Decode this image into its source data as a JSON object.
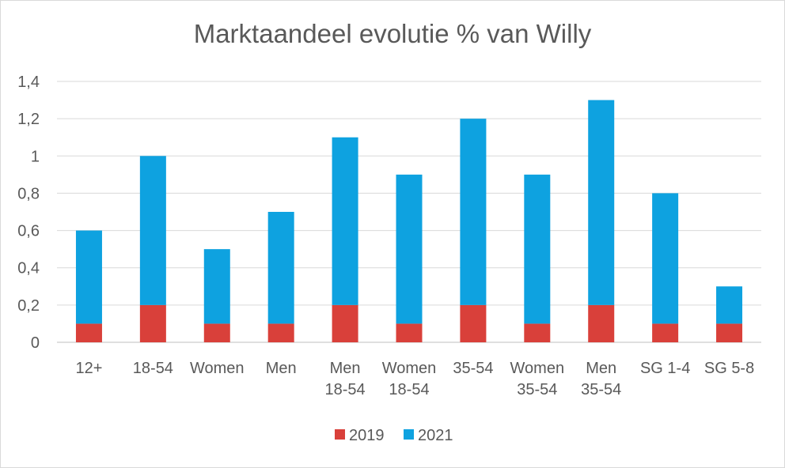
{
  "chart_data": {
    "type": "bar",
    "stacked": true,
    "title": "Marktaandeel evolutie % van Willy",
    "xlabel": "",
    "ylabel": "",
    "ylim": [
      0,
      1.4
    ],
    "yticks": [
      "0",
      "0,2",
      "0,4",
      "0,6",
      "0,8",
      "1",
      "1,2",
      "1,4"
    ],
    "categories": [
      [
        "12+"
      ],
      [
        "18-54"
      ],
      [
        "Women"
      ],
      [
        "Men"
      ],
      [
        "Men",
        "18-54"
      ],
      [
        "Women",
        "18-54"
      ],
      [
        "35-54"
      ],
      [
        "Women",
        "35-54"
      ],
      [
        "Men",
        "35-54"
      ],
      [
        "SG 1-4"
      ],
      [
        "SG 5-8"
      ]
    ],
    "series": [
      {
        "name": "2019",
        "color": "#d9403a",
        "values": [
          0.1,
          0.2,
          0.1,
          0.1,
          0.2,
          0.1,
          0.2,
          0.1,
          0.2,
          0.1,
          0.1
        ]
      },
      {
        "name": "2021",
        "color": "#0ea2e0",
        "values": [
          0.5,
          0.8,
          0.4,
          0.6,
          0.9,
          0.8,
          1.0,
          0.8,
          1.1,
          0.7,
          0.2
        ]
      }
    ],
    "grid": true,
    "legend": "bottom-center"
  }
}
